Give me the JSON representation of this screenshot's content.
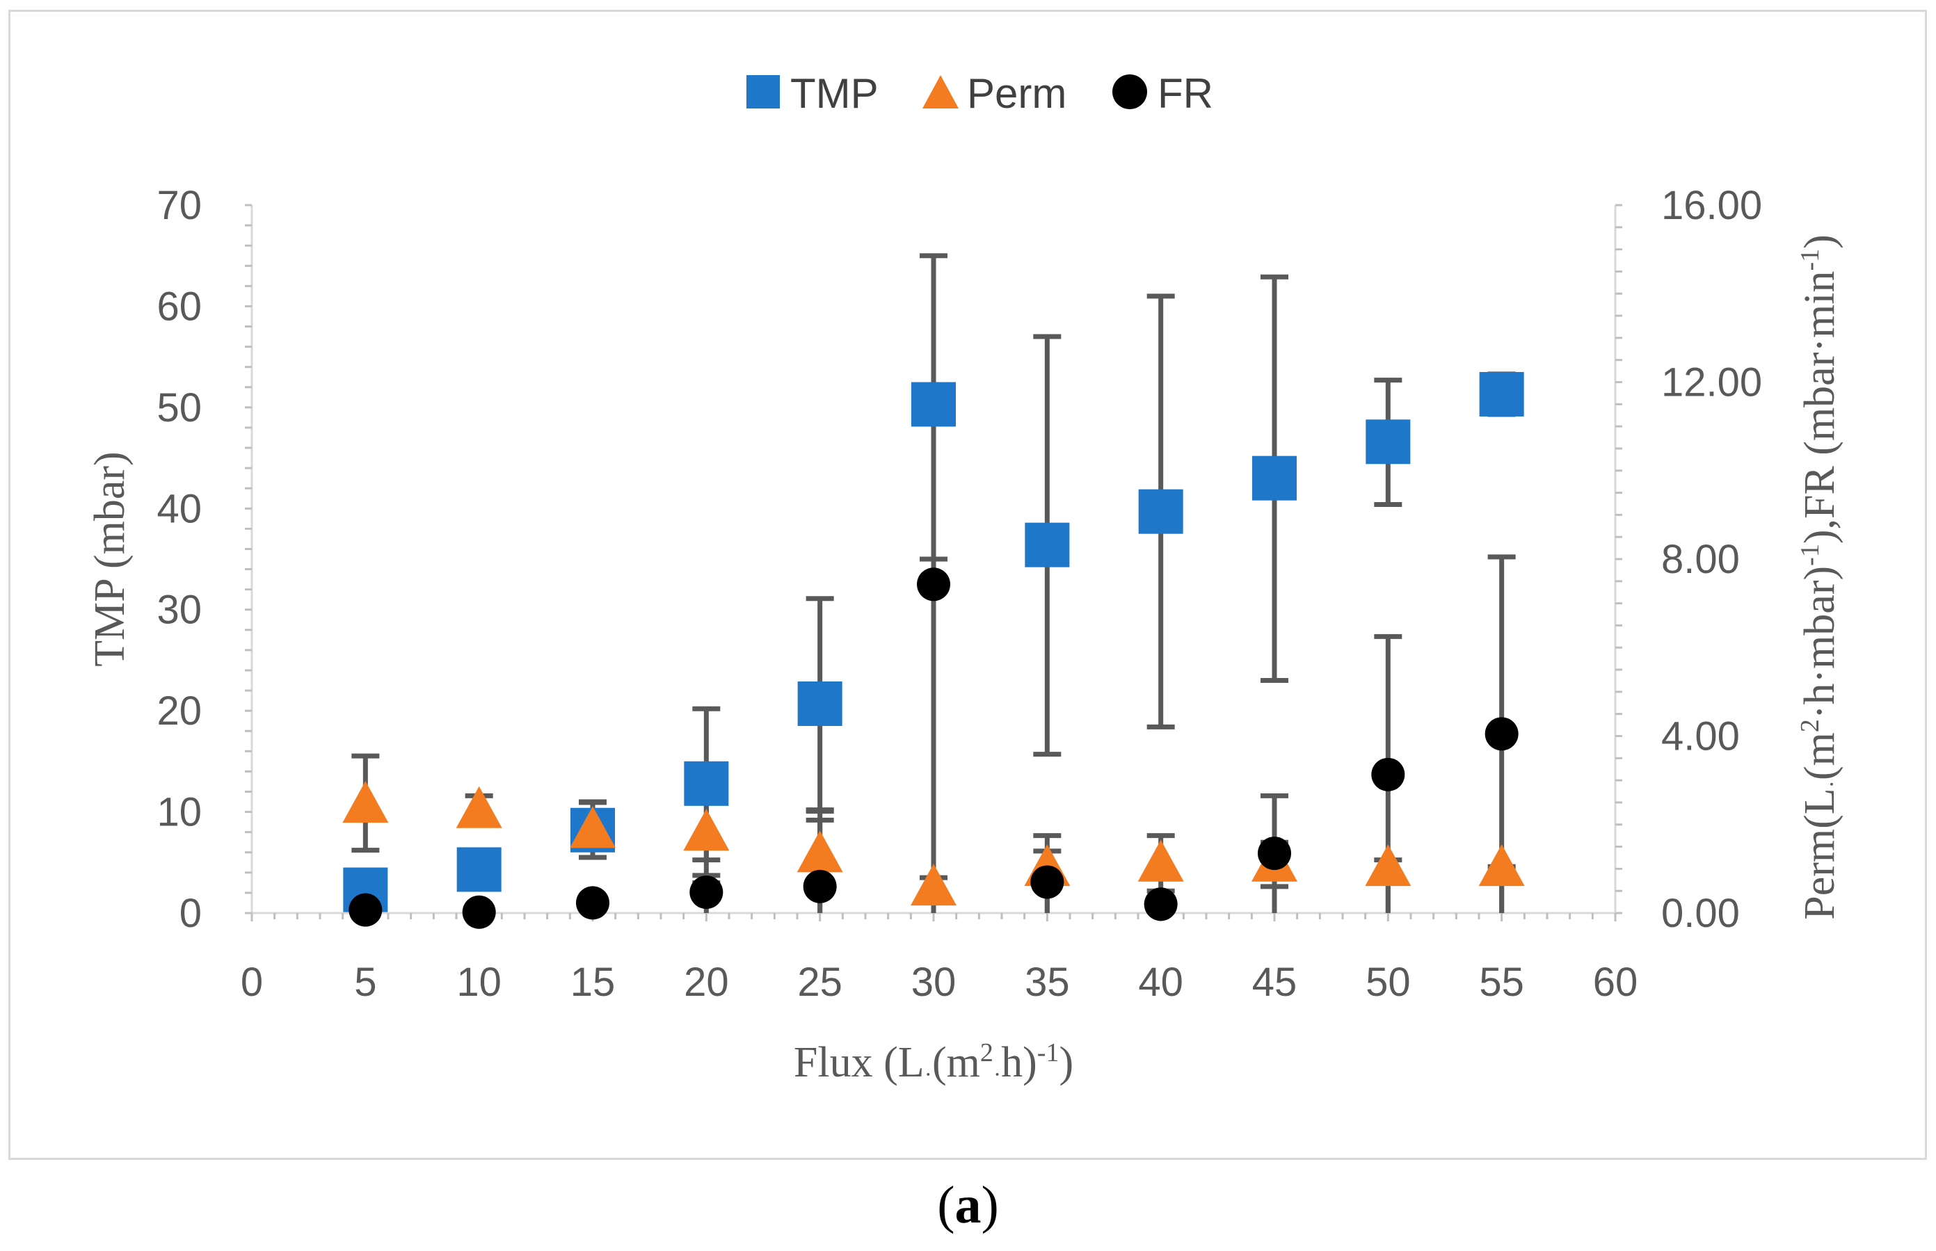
{
  "chart_data": {
    "type": "scatter",
    "title": "",
    "caption": {
      "open": "(",
      "letter": "a",
      "close": ")"
    },
    "xlabel": {
      "main": "Flux (L",
      "dot1": "·",
      "mid": "(m",
      "sup1": "2",
      "dot2": "·",
      "h": "h)",
      "sup2": "-1",
      "close": ")"
    },
    "ylabel_left": "TMP (mbar)",
    "ylabel_right": {
      "a": "Perm(L",
      "dot1": "·",
      "b": "(m",
      "sup1": "2",
      "c": "·h·mbar)",
      "sup2": "-1",
      "d": "),FR (mbar·min",
      "sup3": "-1",
      "e": ")"
    },
    "xlim": [
      0,
      60
    ],
    "ylim_left": [
      0,
      70
    ],
    "ylim_right": [
      0,
      16
    ],
    "x_ticks": [
      "0",
      "5",
      "10",
      "15",
      "20",
      "25",
      "30",
      "35",
      "40",
      "45",
      "50",
      "55",
      "60"
    ],
    "y_left_ticks": [
      "0",
      "10",
      "20",
      "30",
      "40",
      "50",
      "60",
      "70"
    ],
    "y_right_ticks": [
      "0.00",
      "4.00",
      "8.00",
      "12.00",
      "16.00"
    ],
    "legend_position": "top-center",
    "grid": false,
    "x": [
      5,
      10,
      15,
      20,
      25,
      30,
      35,
      40,
      45,
      50,
      55
    ],
    "series": [
      {
        "name": "TMP",
        "axis": "left",
        "marker": "square",
        "color": "#1f77c9",
        "values": [
          2.3,
          4.3,
          8.2,
          12.8,
          20.7,
          50.3,
          36.4,
          39.7,
          43.0,
          46.6,
          51.3
        ],
        "err_low": [
          null,
          null,
          5.5,
          3.0,
          10.2,
          35.0,
          15.7,
          18.4,
          23.0,
          40.4,
          49.3
        ],
        "err_high": [
          null,
          null,
          11.0,
          20.2,
          31.1,
          65.0,
          57.0,
          61.0,
          62.9,
          52.7,
          53.3
        ]
      },
      {
        "name": "Perm",
        "axis": "right",
        "marker": "triangle",
        "color": "#f47c20",
        "values": [
          2.45,
          2.33,
          1.88,
          1.82,
          1.33,
          0.58,
          1.02,
          1.12,
          1.12,
          1.02,
          1.02
        ],
        "err_low": [
          1.42,
          2.2,
          null,
          1.2,
          0.0,
          0.0,
          0.0,
          0.0,
          0.0,
          0.0,
          0.0
        ],
        "err_high": [
          3.55,
          2.65,
          2.5,
          2.95,
          2.3,
          0.8,
          1.75,
          1.75,
          1.6,
          1.2,
          1.05
        ]
      },
      {
        "name": "FR",
        "axis": "right",
        "marker": "circle",
        "color": "#000000",
        "values": [
          0.07,
          0.02,
          0.23,
          0.47,
          0.6,
          7.43,
          0.7,
          0.2,
          1.35,
          3.13,
          4.05
        ],
        "err_low": [
          null,
          null,
          null,
          0.0,
          0.0,
          0.0,
          0.0,
          null,
          0.6,
          0.0,
          0.0
        ],
        "err_high": [
          null,
          null,
          null,
          0.85,
          2.1,
          8.0,
          1.4,
          0.5,
          2.65,
          6.25,
          8.05
        ]
      }
    ]
  }
}
